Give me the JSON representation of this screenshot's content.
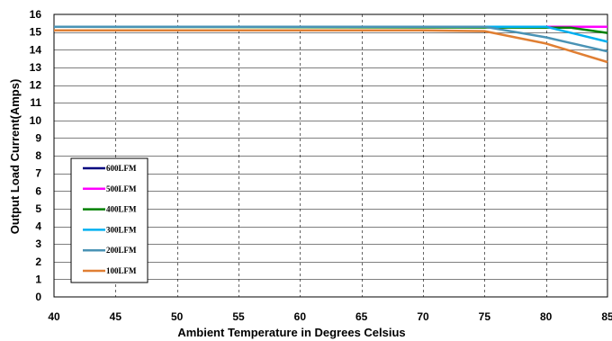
{
  "chart_data": {
    "type": "line",
    "title": "",
    "xlabel": "Ambient Temperature in Degrees Celsius",
    "ylabel": "Output  Load Current(Amps)",
    "xlim": [
      40,
      85
    ],
    "ylim": [
      0,
      16
    ],
    "x_ticks": [
      "40",
      "45",
      "50",
      "55",
      "60",
      "65",
      "70",
      "75",
      "80",
      "85"
    ],
    "y_ticks": [
      "0",
      "1",
      "2",
      "3",
      "4",
      "5",
      "6",
      "7",
      "8",
      "9",
      "10",
      "11",
      "12",
      "13",
      "14",
      "15",
      "16"
    ],
    "grid": {
      "vertical": "dashed",
      "horizontal": "solid"
    },
    "legend_position": "lower-left",
    "series": [
      {
        "name": "600LFM",
        "color": "#00007f",
        "points": [
          [
            40,
            15.3
          ],
          [
            85,
            15.3
          ]
        ]
      },
      {
        "name": "500LFM",
        "color": "#ff00ff",
        "points": [
          [
            40,
            15.3
          ],
          [
            85,
            15.3
          ]
        ]
      },
      {
        "name": "400LFM",
        "color": "#008000",
        "points": [
          [
            40,
            15.3
          ],
          [
            82,
            15.25
          ],
          [
            85,
            14.95
          ]
        ]
      },
      {
        "name": "300LFM",
        "color": "#00b0f0",
        "points": [
          [
            40,
            15.3
          ],
          [
            80,
            15.3
          ],
          [
            85,
            14.45
          ]
        ]
      },
      {
        "name": "200LFM",
        "color": "#4a93b5",
        "points": [
          [
            40,
            15.3
          ],
          [
            75,
            15.3
          ],
          [
            80,
            14.7
          ],
          [
            85,
            13.9
          ]
        ]
      },
      {
        "name": "100LFM",
        "color": "#e07f33",
        "points": [
          [
            40,
            15.1
          ],
          [
            70,
            15.1
          ],
          [
            75,
            15.05
          ],
          [
            80,
            14.35
          ],
          [
            85,
            13.3
          ]
        ]
      }
    ]
  }
}
